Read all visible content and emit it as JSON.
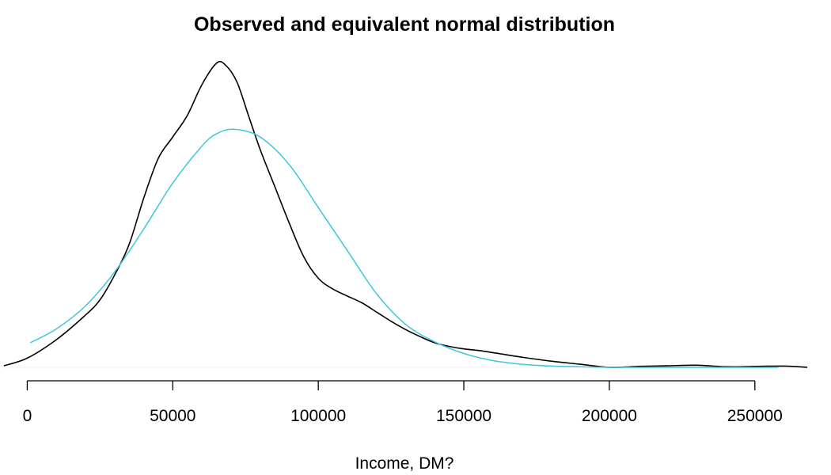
{
  "chart_data": {
    "type": "line",
    "title": "Observed and equivalent normal distribution",
    "xlabel": "Income, DM?",
    "ylabel": "",
    "xlim": [
      -8000,
      268000
    ],
    "ylim": [
      0,
      1.0
    ],
    "x_ticks": [
      0,
      50000,
      100000,
      150000,
      200000,
      250000
    ],
    "x_tick_labels": [
      "0",
      "50000",
      "100000",
      "150000",
      "200000",
      "250000"
    ],
    "grid": false,
    "legend": "none",
    "series": [
      {
        "color": "#000000",
        "points": [
          [
            -8000,
            0.005
          ],
          [
            0,
            0.03
          ],
          [
            10000,
            0.09
          ],
          [
            20000,
            0.17
          ],
          [
            25000,
            0.22
          ],
          [
            30000,
            0.3
          ],
          [
            35000,
            0.4
          ],
          [
            40000,
            0.55
          ],
          [
            45000,
            0.68
          ],
          [
            50000,
            0.75
          ],
          [
            55000,
            0.82
          ],
          [
            60000,
            0.92
          ],
          [
            65000,
            0.99
          ],
          [
            68000,
            0.985
          ],
          [
            72000,
            0.93
          ],
          [
            76000,
            0.82
          ],
          [
            80000,
            0.71
          ],
          [
            85000,
            0.59
          ],
          [
            90000,
            0.47
          ],
          [
            95000,
            0.36
          ],
          [
            100000,
            0.29
          ],
          [
            105000,
            0.255
          ],
          [
            110000,
            0.232
          ],
          [
            115000,
            0.21
          ],
          [
            120000,
            0.18
          ],
          [
            125000,
            0.15
          ],
          [
            130000,
            0.123
          ],
          [
            135000,
            0.1
          ],
          [
            140000,
            0.08
          ],
          [
            145000,
            0.068
          ],
          [
            150000,
            0.06
          ],
          [
            155000,
            0.055
          ],
          [
            160000,
            0.048
          ],
          [
            170000,
            0.033
          ],
          [
            180000,
            0.02
          ],
          [
            190000,
            0.01
          ],
          [
            200000,
            0.0
          ],
          [
            210000,
            0.003
          ],
          [
            220000,
            0.005
          ],
          [
            230000,
            0.007
          ],
          [
            240000,
            0.002
          ],
          [
            250000,
            0.003
          ],
          [
            260000,
            0.004
          ],
          [
            268000,
            0.0
          ]
        ]
      },
      {
        "color": "#3ec6dc",
        "points": [
          [
            1000,
            0.08
          ],
          [
            10000,
            0.125
          ],
          [
            20000,
            0.2
          ],
          [
            30000,
            0.31
          ],
          [
            40000,
            0.45
          ],
          [
            50000,
            0.6
          ],
          [
            60000,
            0.72
          ],
          [
            65000,
            0.76
          ],
          [
            71000,
            0.775
          ],
          [
            80000,
            0.75
          ],
          [
            90000,
            0.66
          ],
          [
            100000,
            0.52
          ],
          [
            110000,
            0.38
          ],
          [
            120000,
            0.24
          ],
          [
            130000,
            0.14
          ],
          [
            140000,
            0.083
          ],
          [
            150000,
            0.045
          ],
          [
            160000,
            0.022
          ],
          [
            170000,
            0.01
          ],
          [
            180000,
            0.004
          ],
          [
            190000,
            0.002
          ],
          [
            200000,
            0.0
          ],
          [
            220000,
            0.0
          ],
          [
            240000,
            0.0
          ],
          [
            258000,
            0.0
          ]
        ]
      }
    ]
  }
}
